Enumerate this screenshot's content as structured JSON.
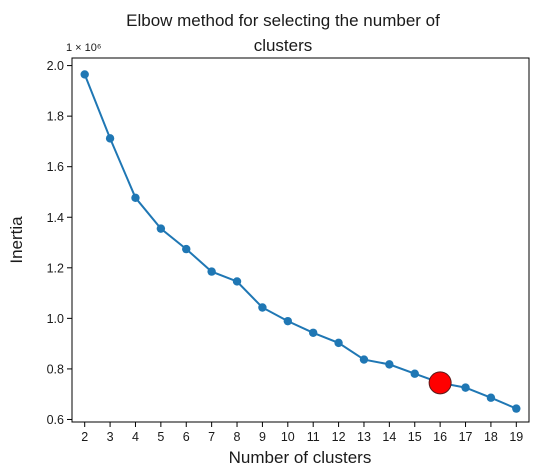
{
  "chart_data": {
    "type": "line",
    "title_line1": "Elbow method for selecting the number of",
    "title_line2": "clusters",
    "xlabel": "Number of clusters",
    "ylabel": "Inertia",
    "y_scale_label": "1 × 10⁶",
    "x": [
      2,
      3,
      4,
      5,
      6,
      7,
      8,
      9,
      10,
      11,
      12,
      13,
      14,
      15,
      16,
      17,
      18,
      19
    ],
    "values": [
      1.965,
      1.712,
      1.477,
      1.355,
      1.274,
      1.185,
      1.146,
      1.043,
      0.989,
      0.943,
      0.903,
      0.837,
      0.818,
      0.781,
      0.745,
      0.726,
      0.686,
      0.643
    ],
    "y_ticks": [
      "0.6",
      "0.8",
      "1.0",
      "1.2",
      "1.4",
      "1.6",
      "1.8",
      "2.0"
    ],
    "x_ticks": [
      "2",
      "3",
      "4",
      "5",
      "6",
      "7",
      "8",
      "9",
      "10",
      "11",
      "12",
      "13",
      "14",
      "15",
      "16",
      "17",
      "18",
      "19"
    ],
    "xlim": [
      1.5,
      19.5
    ],
    "ylim": [
      0.59,
      2.03
    ],
    "highlight": {
      "x": 16,
      "value": 0.745,
      "color": "#ff0000"
    },
    "line_color": "#1f77b4",
    "grid": false
  }
}
